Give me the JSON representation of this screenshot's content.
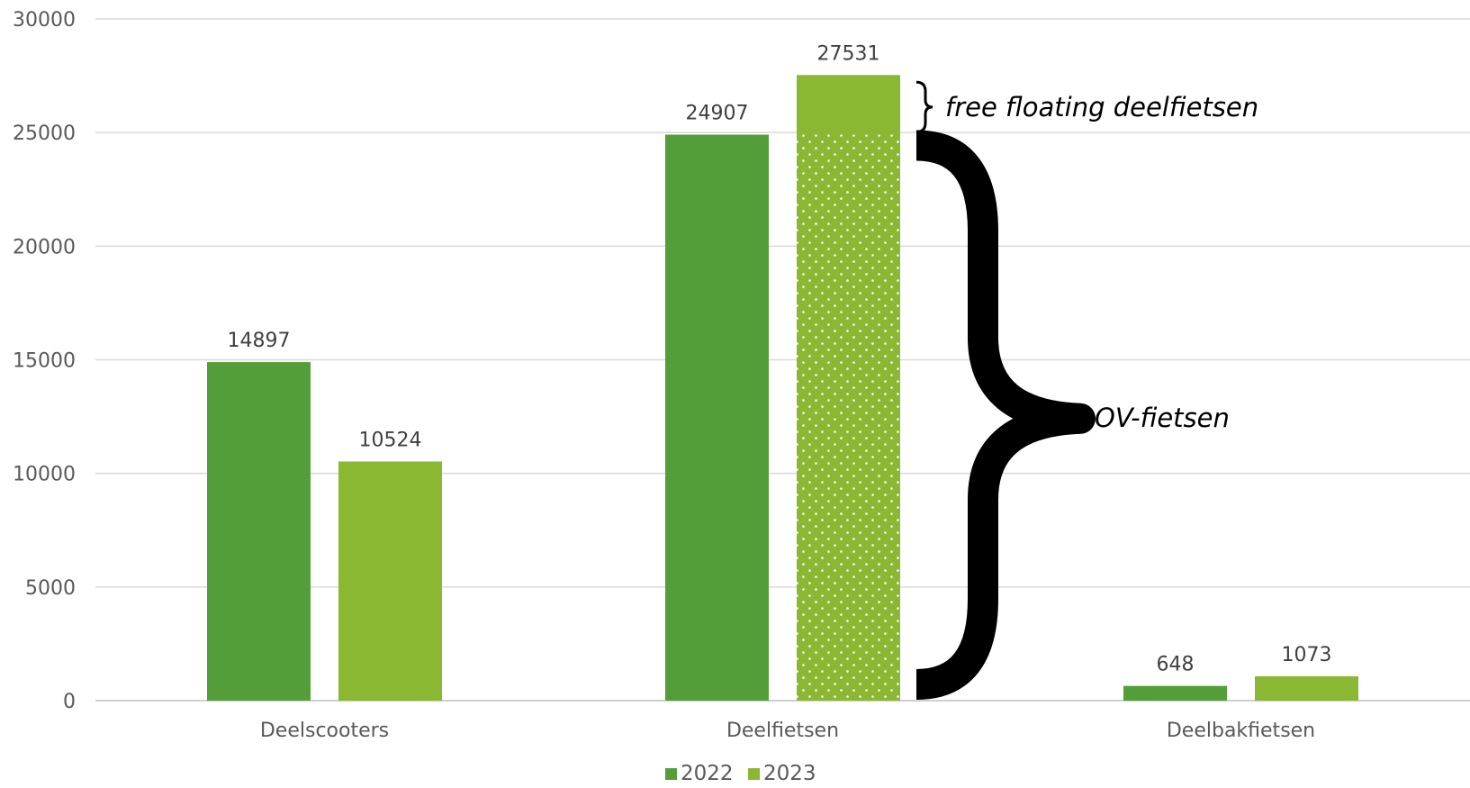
{
  "chart_data": {
    "type": "bar",
    "categories": [
      "Deelscooters",
      "Deelfietsen",
      "Deelbakfietsen"
    ],
    "series": [
      {
        "name": "2022",
        "values": [
          14897,
          24907,
          648
        ],
        "color": "#549E39"
      },
      {
        "name": "2023",
        "values": [
          10524,
          27531,
          1073
        ],
        "color": "#8AB833"
      }
    ],
    "ylim": [
      0,
      30000
    ],
    "yticks": [
      0,
      5000,
      10000,
      15000,
      20000,
      25000,
      30000
    ],
    "grid": true,
    "legend_position": "bottom",
    "highlight": {
      "category": "Deelfietsen",
      "series": "2023",
      "pattern": "dotted",
      "pattern_upper_value": 24907
    },
    "annotations": [
      {
        "text": "free floating deelfietsen",
        "from": 24907,
        "to": 27531
      },
      {
        "text": "OV-fietsen",
        "from": 0,
        "to": 24907
      }
    ]
  }
}
